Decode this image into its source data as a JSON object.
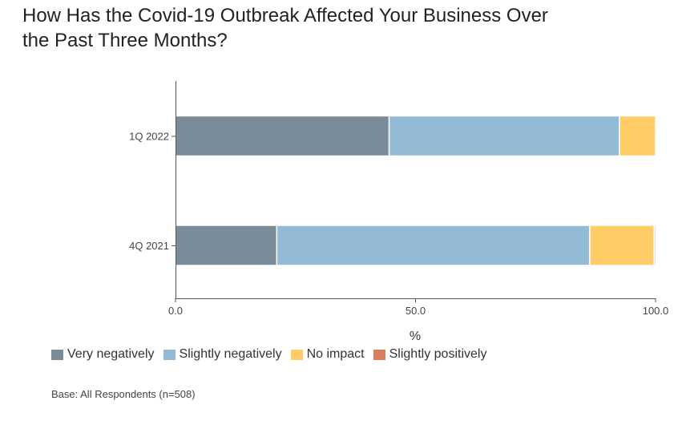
{
  "title_lines": [
    "How Has the Covid-19 Outbreak Affected Your Business Over",
    "the Past Three Months?"
  ],
  "footnote": "Base: All Respondents (n=508)",
  "colors": {
    "very_negatively": "#7a8b99",
    "slightly_negatively": "#94bbd6",
    "no_impact": "#ffcc66",
    "slightly_positively": "#d97f5b"
  },
  "chart_data": {
    "type": "bar",
    "orientation": "horizontal",
    "stacked": true,
    "title": "How Has the Covid-19 Outbreak Affected Your Business Over the Past Three Months?",
    "xlabel": "%",
    "ylabel": "",
    "xlim": [
      0,
      100
    ],
    "xticks": [
      "0.0",
      "50.0",
      "100.0"
    ],
    "categories": [
      "1Q 2022",
      "4Q 2021"
    ],
    "series": [
      {
        "name": "Very negatively",
        "color": "#7a8b99",
        "values": [
          44.5,
          21.1
        ]
      },
      {
        "name": "Slightly negatively",
        "color": "#94bbd6",
        "values": [
          48.0,
          65.2
        ]
      },
      {
        "name": "No impact",
        "color": "#ffcc66",
        "values": [
          7.5,
          13.4
        ]
      },
      {
        "name": "Slightly positively",
        "color": "#d97f5b",
        "values": [
          0.0,
          0.3
        ]
      }
    ],
    "legend_position": "bottom-left",
    "grid": false
  }
}
